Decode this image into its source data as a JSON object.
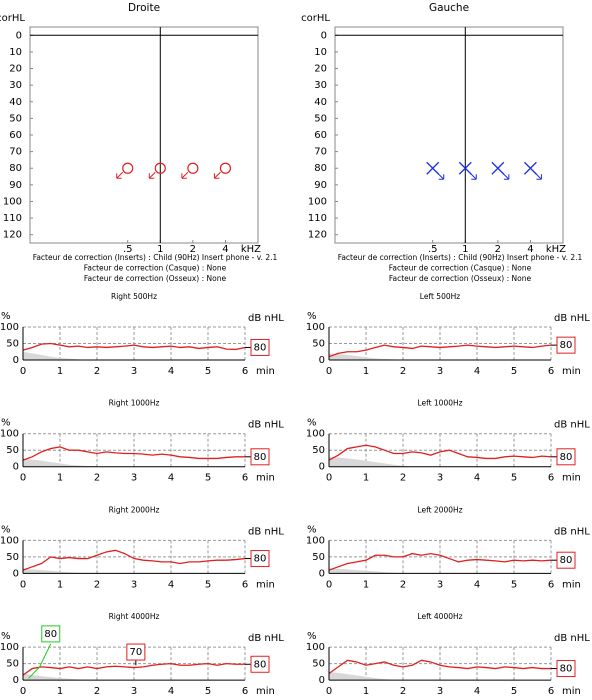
{
  "chart_data": [
    {
      "type": "audiogram",
      "title": "Droite",
      "ylabel": "corHL",
      "xlabel": "kHZ",
      "xscale": "log",
      "y_inverted": true,
      "xlim": [
        0.0625,
        8
      ],
      "ylim": [
        -5,
        125
      ],
      "xticks": [
        {
          "value": 0.5,
          "label": ".5"
        },
        1,
        2,
        4
      ],
      "yticks": [
        0,
        10,
        20,
        30,
        40,
        50,
        60,
        70,
        80,
        90,
        100,
        110,
        120
      ],
      "crosshair": {
        "x": 1,
        "y": 0
      },
      "series": [
        {
          "color": "#e02020",
          "marker": "circle",
          "x": [
            0.5,
            1,
            2,
            4
          ],
          "values": [
            80,
            80,
            80,
            80
          ]
        }
      ],
      "notes": [
        "Facteur de correction (Inserts) : Child (90Hz) Insert phone - v. 2.1",
        "Facteur de correction (Casque) : None",
        "Facteur de correction (Osseux) : None"
      ]
    },
    {
      "type": "audiogram",
      "title": "Gauche",
      "ylabel": "corHL",
      "xlabel": "kHZ",
      "xscale": "log",
      "y_inverted": true,
      "xlim": [
        0.0625,
        8
      ],
      "ylim": [
        -5,
        125
      ],
      "xticks": [
        {
          "value": 0.5,
          "label": ".5"
        },
        1,
        2,
        4
      ],
      "yticks": [
        0,
        10,
        20,
        30,
        40,
        50,
        60,
        70,
        80,
        90,
        100,
        110,
        120
      ],
      "crosshair": {
        "x": 1,
        "y": 0
      },
      "series": [
        {
          "color": "#2030e0",
          "marker": "x",
          "x": [
            0.5,
            1,
            2,
            4
          ],
          "values": [
            80,
            80,
            80,
            80
          ]
        }
      ],
      "notes": [
        "Facteur de correction (Inserts) : Child (90Hz) Insert phone - v. 2.1",
        "Facteur de correction (Casque) : None",
        "Facteur de correction (Osseux) : None"
      ]
    },
    {
      "type": "line",
      "title": "Right 500Hz",
      "ylabel": "%",
      "xlabel": "min",
      "level_label": "dB nHL",
      "level": 80,
      "xlim": [
        0,
        6
      ],
      "ylim": [
        0,
        100
      ],
      "xticks": [
        0,
        1,
        2,
        3,
        4,
        5,
        6
      ],
      "yticks": [
        0,
        50,
        100
      ],
      "x": [
        0,
        0.25,
        0.5,
        0.75,
        1,
        1.25,
        1.5,
        1.75,
        2,
        2.25,
        2.5,
        2.75,
        3,
        3.25,
        3.5,
        3.75,
        4,
        4.25,
        4.5,
        4.75,
        5,
        5.25,
        5.5,
        5.75,
        6
      ],
      "series": [
        {
          "color": "#e02020",
          "values": [
            30,
            38,
            48,
            50,
            45,
            40,
            42,
            38,
            40,
            38,
            40,
            42,
            45,
            40,
            38,
            40,
            42,
            38,
            40,
            35,
            38,
            40,
            33,
            32,
            38
          ]
        },
        {
          "color": "#d8d8d8",
          "fill": true,
          "values": [
            25,
            20,
            15,
            10,
            6,
            4,
            2,
            1,
            0,
            0,
            0,
            0,
            0,
            0,
            0,
            0,
            0,
            0,
            0,
            0,
            0,
            0,
            0,
            0,
            0
          ]
        }
      ]
    },
    {
      "type": "line",
      "title": "Left 500Hz",
      "ylabel": "%",
      "xlabel": "min",
      "level_label": "dB nHL",
      "level": 80,
      "xlim": [
        0,
        6
      ],
      "ylim": [
        0,
        100
      ],
      "xticks": [
        0,
        1,
        2,
        3,
        4,
        5,
        6
      ],
      "yticks": [
        0,
        50,
        100
      ],
      "x": [
        0,
        0.25,
        0.5,
        0.75,
        1,
        1.25,
        1.5,
        1.75,
        2,
        2.25,
        2.5,
        2.75,
        3,
        3.25,
        3.5,
        3.75,
        4,
        4.25,
        4.5,
        4.75,
        5,
        5.25,
        5.5,
        5.75,
        6
      ],
      "series": [
        {
          "color": "#e02020",
          "values": [
            10,
            20,
            25,
            25,
            30,
            38,
            45,
            40,
            38,
            35,
            42,
            40,
            38,
            40,
            42,
            45,
            42,
            40,
            38,
            40,
            42,
            40,
            38,
            42,
            45
          ]
        },
        {
          "color": "#d8d8d8",
          "fill": true,
          "values": [
            20,
            18,
            15,
            12,
            8,
            5,
            3,
            2,
            1,
            0,
            0,
            0,
            0,
            0,
            0,
            0,
            0,
            0,
            0,
            0,
            0,
            0,
            0,
            0,
            0
          ]
        }
      ]
    },
    {
      "type": "line",
      "title": "Right 1000Hz",
      "ylabel": "%",
      "xlabel": "min",
      "level_label": "dB nHL",
      "level": 80,
      "xlim": [
        0,
        6
      ],
      "ylim": [
        0,
        100
      ],
      "xticks": [
        0,
        1,
        2,
        3,
        4,
        5,
        6
      ],
      "yticks": [
        0,
        50,
        100
      ],
      "x": [
        0,
        0.25,
        0.5,
        0.75,
        1,
        1.25,
        1.5,
        1.75,
        2,
        2.25,
        2.5,
        2.75,
        3,
        3.25,
        3.5,
        3.75,
        4,
        4.25,
        4.5,
        4.75,
        5,
        5.25,
        5.5,
        5.75,
        6
      ],
      "series": [
        {
          "color": "#e02020",
          "values": [
            20,
            30,
            45,
            55,
            60,
            50,
            50,
            45,
            40,
            45,
            42,
            40,
            40,
            38,
            35,
            38,
            35,
            30,
            28,
            25,
            25,
            25,
            28,
            30,
            30
          ]
        },
        {
          "color": "#d8d8d8",
          "fill": true,
          "values": [
            25,
            22,
            18,
            14,
            10,
            6,
            4,
            2,
            1,
            0,
            0,
            0,
            0,
            0,
            0,
            0,
            0,
            0,
            0,
            0,
            0,
            0,
            0,
            0,
            0
          ]
        }
      ]
    },
    {
      "type": "line",
      "title": "Left 1000Hz",
      "ylabel": "%",
      "xlabel": "min",
      "level_label": "dB nHL",
      "level": 80,
      "xlim": [
        0,
        6
      ],
      "ylim": [
        0,
        100
      ],
      "xticks": [
        0,
        1,
        2,
        3,
        4,
        5,
        6
      ],
      "yticks": [
        0,
        50,
        100
      ],
      "x": [
        0,
        0.25,
        0.5,
        0.75,
        1,
        1.25,
        1.5,
        1.75,
        2,
        2.25,
        2.5,
        2.75,
        3,
        3.25,
        3.5,
        3.75,
        4,
        4.25,
        4.5,
        4.75,
        5,
        5.25,
        5.5,
        5.75,
        6
      ],
      "series": [
        {
          "color": "#e02020",
          "values": [
            20,
            35,
            55,
            60,
            65,
            60,
            50,
            40,
            40,
            45,
            42,
            35,
            45,
            50,
            40,
            30,
            28,
            25,
            25,
            30,
            32,
            30,
            28,
            32,
            30
          ]
        },
        {
          "color": "#d8d8d8",
          "fill": true,
          "values": [
            30,
            28,
            25,
            22,
            18,
            14,
            10,
            6,
            3,
            1,
            0,
            0,
            0,
            0,
            0,
            0,
            0,
            0,
            0,
            0,
            0,
            0,
            0,
            0,
            0
          ]
        }
      ]
    },
    {
      "type": "line",
      "title": "Right 2000Hz",
      "ylabel": "%",
      "xlabel": "min",
      "level_label": "dB nHL",
      "level": 80,
      "xlim": [
        0,
        6
      ],
      "ylim": [
        0,
        100
      ],
      "xticks": [
        0,
        1,
        2,
        3,
        4,
        5,
        6
      ],
      "yticks": [
        0,
        50,
        100
      ],
      "x": [
        0,
        0.25,
        0.5,
        0.75,
        1,
        1.25,
        1.5,
        1.75,
        2,
        2.25,
        2.5,
        2.75,
        3,
        3.25,
        3.5,
        3.75,
        4,
        4.25,
        4.5,
        4.75,
        5,
        5.25,
        5.5,
        5.75,
        6
      ],
      "series": [
        {
          "color": "#e02020",
          "values": [
            10,
            20,
            30,
            50,
            45,
            48,
            45,
            45,
            55,
            65,
            70,
            60,
            45,
            40,
            38,
            35,
            35,
            30,
            35,
            35,
            38,
            40,
            40,
            42,
            45
          ]
        },
        {
          "color": "#d8d8d8",
          "fill": true,
          "values": [
            15,
            12,
            10,
            8,
            5,
            3,
            2,
            1,
            0,
            0,
            0,
            0,
            0,
            0,
            0,
            0,
            0,
            0,
            0,
            0,
            0,
            0,
            0,
            0,
            0
          ]
        }
      ]
    },
    {
      "type": "line",
      "title": "Left 2000Hz",
      "ylabel": "%",
      "xlabel": "min",
      "level_label": "dB nHL",
      "level": 80,
      "xlim": [
        0,
        6
      ],
      "ylim": [
        0,
        100
      ],
      "xticks": [
        0,
        1,
        2,
        3,
        4,
        5,
        6
      ],
      "yticks": [
        0,
        50,
        100
      ],
      "x": [
        0,
        0.25,
        0.5,
        0.75,
        1,
        1.25,
        1.5,
        1.75,
        2,
        2.25,
        2.5,
        2.75,
        3,
        3.25,
        3.5,
        3.75,
        4,
        4.25,
        4.5,
        4.75,
        5,
        5.25,
        5.5,
        5.75,
        6
      ],
      "series": [
        {
          "color": "#e02020",
          "values": [
            10,
            20,
            30,
            35,
            40,
            55,
            55,
            50,
            50,
            60,
            55,
            60,
            55,
            45,
            35,
            40,
            42,
            40,
            38,
            35,
            40,
            38,
            40,
            38,
            40
          ]
        },
        {
          "color": "#d8d8d8",
          "fill": true,
          "values": [
            15,
            14,
            12,
            10,
            8,
            6,
            4,
            2,
            1,
            0,
            0,
            0,
            0,
            0,
            0,
            0,
            0,
            0,
            0,
            0,
            0,
            0,
            0,
            0,
            0
          ]
        }
      ]
    },
    {
      "type": "line",
      "title": "Right 4000Hz",
      "ylabel": "%",
      "xlabel": "min",
      "level_label": "dB nHL",
      "level": 80,
      "xlim": [
        0,
        6
      ],
      "ylim": [
        0,
        100
      ],
      "xticks": [
        0,
        1,
        2,
        3,
        4,
        5,
        6
      ],
      "yticks": [
        0,
        50,
        100
      ],
      "x": [
        0,
        0.25,
        0.5,
        0.75,
        1,
        1.25,
        1.5,
        1.75,
        2,
        2.25,
        2.5,
        2.75,
        3,
        3.25,
        3.5,
        3.75,
        4,
        4.25,
        4.5,
        4.75,
        5,
        5.25,
        5.5,
        5.75,
        6
      ],
      "series": [
        {
          "color": "#e02020",
          "values": [
            15,
            35,
            40,
            38,
            35,
            40,
            35,
            40,
            35,
            40,
            42,
            40,
            38,
            40,
            45,
            48,
            50,
            45,
            45,
            48,
            50,
            45,
            50,
            48,
            48
          ]
        },
        {
          "color": "#d8d8d8",
          "fill": true,
          "values": [
            20,
            16,
            12,
            9,
            6,
            4,
            2,
            1,
            0,
            0,
            0,
            0,
            0,
            0,
            0,
            0,
            0,
            0,
            0,
            0,
            0,
            0,
            0,
            0,
            0
          ]
        }
      ],
      "annotations": [
        {
          "text": "80",
          "color": "#22cc22",
          "x": 0.75,
          "y": 140,
          "line": [
            [
              0.15,
              5
            ],
            [
              0.45,
              40
            ],
            [
              0.75,
              110
            ]
          ]
        },
        {
          "text": "70",
          "color": "#e02020",
          "x": 3.05,
          "y": 85,
          "line": [
            [
              3.05,
              72
            ],
            [
              3.05,
              45
            ]
          ]
        }
      ]
    },
    {
      "type": "line",
      "title": "Left 4000Hz",
      "ylabel": "%",
      "xlabel": "min",
      "level_label": "dB nHL",
      "level": 80,
      "xlim": [
        0,
        6
      ],
      "ylim": [
        0,
        100
      ],
      "xticks": [
        0,
        1,
        2,
        3,
        4,
        5,
        6
      ],
      "yticks": [
        0,
        50,
        100
      ],
      "x": [
        0,
        0.25,
        0.5,
        0.75,
        1,
        1.25,
        1.5,
        1.75,
        2,
        2.25,
        2.5,
        2.75,
        3,
        3.25,
        3.5,
        3.75,
        4,
        4.25,
        4.5,
        4.75,
        5,
        5.25,
        5.5,
        5.75,
        6
      ],
      "series": [
        {
          "color": "#e02020",
          "values": [
            20,
            40,
            60,
            55,
            45,
            50,
            55,
            45,
            40,
            45,
            60,
            55,
            45,
            40,
            38,
            35,
            40,
            38,
            35,
            40,
            38,
            35,
            38,
            35,
            35
          ]
        },
        {
          "color": "#d8d8d8",
          "fill": true,
          "values": [
            25,
            22,
            18,
            14,
            10,
            6,
            3,
            1,
            0,
            0,
            0,
            0,
            0,
            0,
            0,
            0,
            0,
            0,
            0,
            0,
            0,
            0,
            0,
            0,
            0
          ]
        }
      ]
    }
  ]
}
